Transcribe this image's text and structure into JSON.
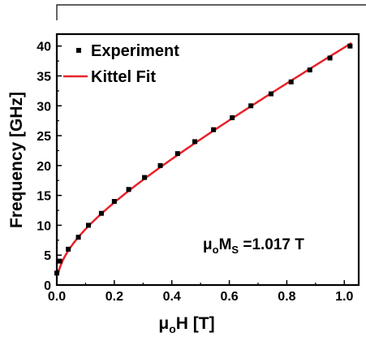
{
  "chart_data": {
    "type": "scatter",
    "xlabel": {
      "prefix": "μ",
      "sub": "o",
      "rest": "H [T]"
    },
    "ylabel": "Frequency [GHz]",
    "xlim": [
      0.0,
      1.05
    ],
    "ylim": [
      0,
      42
    ],
    "xticks": [
      "0.0",
      "0.2",
      "0.4",
      "0.6",
      "0.8",
      "1.0"
    ],
    "yticks": [
      "0",
      "5",
      "10",
      "15",
      "20",
      "25",
      "30",
      "35",
      "40"
    ],
    "grid": false,
    "legend_position": "top-left",
    "series": [
      {
        "name": "Experiment",
        "kind": "scatter",
        "marker": "square",
        "color": "#000000",
        "points": [
          [
            0.0,
            2.0
          ],
          [
            0.01,
            4.0
          ],
          [
            0.04,
            6.0
          ],
          [
            0.075,
            8.0
          ],
          [
            0.11,
            10.0
          ],
          [
            0.155,
            12.0
          ],
          [
            0.2,
            14.0
          ],
          [
            0.25,
            16.0
          ],
          [
            0.305,
            18.0
          ],
          [
            0.36,
            20.0
          ],
          [
            0.42,
            22.0
          ],
          [
            0.48,
            24.0
          ],
          [
            0.545,
            26.0
          ],
          [
            0.61,
            28.0
          ],
          [
            0.675,
            30.0
          ],
          [
            0.745,
            32.0
          ],
          [
            0.815,
            34.0
          ],
          [
            0.88,
            36.0
          ],
          [
            0.95,
            38.0
          ],
          [
            1.02,
            40.0
          ]
        ]
      },
      {
        "name": "Kittel Fit",
        "kind": "line",
        "color": "#e8222a",
        "Ms_T": 1.017,
        "gamma_GHz_per_T": 28.0
      }
    ],
    "annotation": {
      "prefix": "μ",
      "sub_o": "o",
      "mid": "M",
      "sub_s": "S",
      "rest": " =1.017 T"
    }
  }
}
